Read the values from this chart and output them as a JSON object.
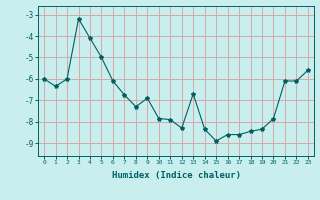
{
  "x": [
    0,
    1,
    2,
    3,
    4,
    5,
    6,
    7,
    8,
    9,
    10,
    11,
    12,
    13,
    14,
    15,
    16,
    17,
    18,
    19,
    20,
    21,
    22,
    23
  ],
  "y": [
    -6.0,
    -6.35,
    -6.0,
    -3.2,
    -4.1,
    -5.0,
    -6.1,
    -6.75,
    -7.3,
    -6.9,
    -7.85,
    -7.9,
    -8.3,
    -6.7,
    -8.35,
    -8.9,
    -8.6,
    -8.6,
    -8.45,
    -8.35,
    -7.85,
    -6.1,
    -6.1,
    -5.6
  ],
  "line_color": "#006060",
  "marker": "*",
  "marker_size": 3,
  "bg_color": "#c8eeee",
  "grid_color": "#d8a8a8",
  "xlabel": "Humidex (Indice chaleur)",
  "xlim": [
    -0.5,
    23.5
  ],
  "ylim": [
    -9.6,
    -2.6
  ],
  "yticks": [
    -9,
    -8,
    -7,
    -6,
    -5,
    -4,
    -3
  ],
  "xticks": [
    0,
    1,
    2,
    3,
    4,
    5,
    6,
    7,
    8,
    9,
    10,
    11,
    12,
    13,
    14,
    15,
    16,
    17,
    18,
    19,
    20,
    21,
    22,
    23
  ]
}
